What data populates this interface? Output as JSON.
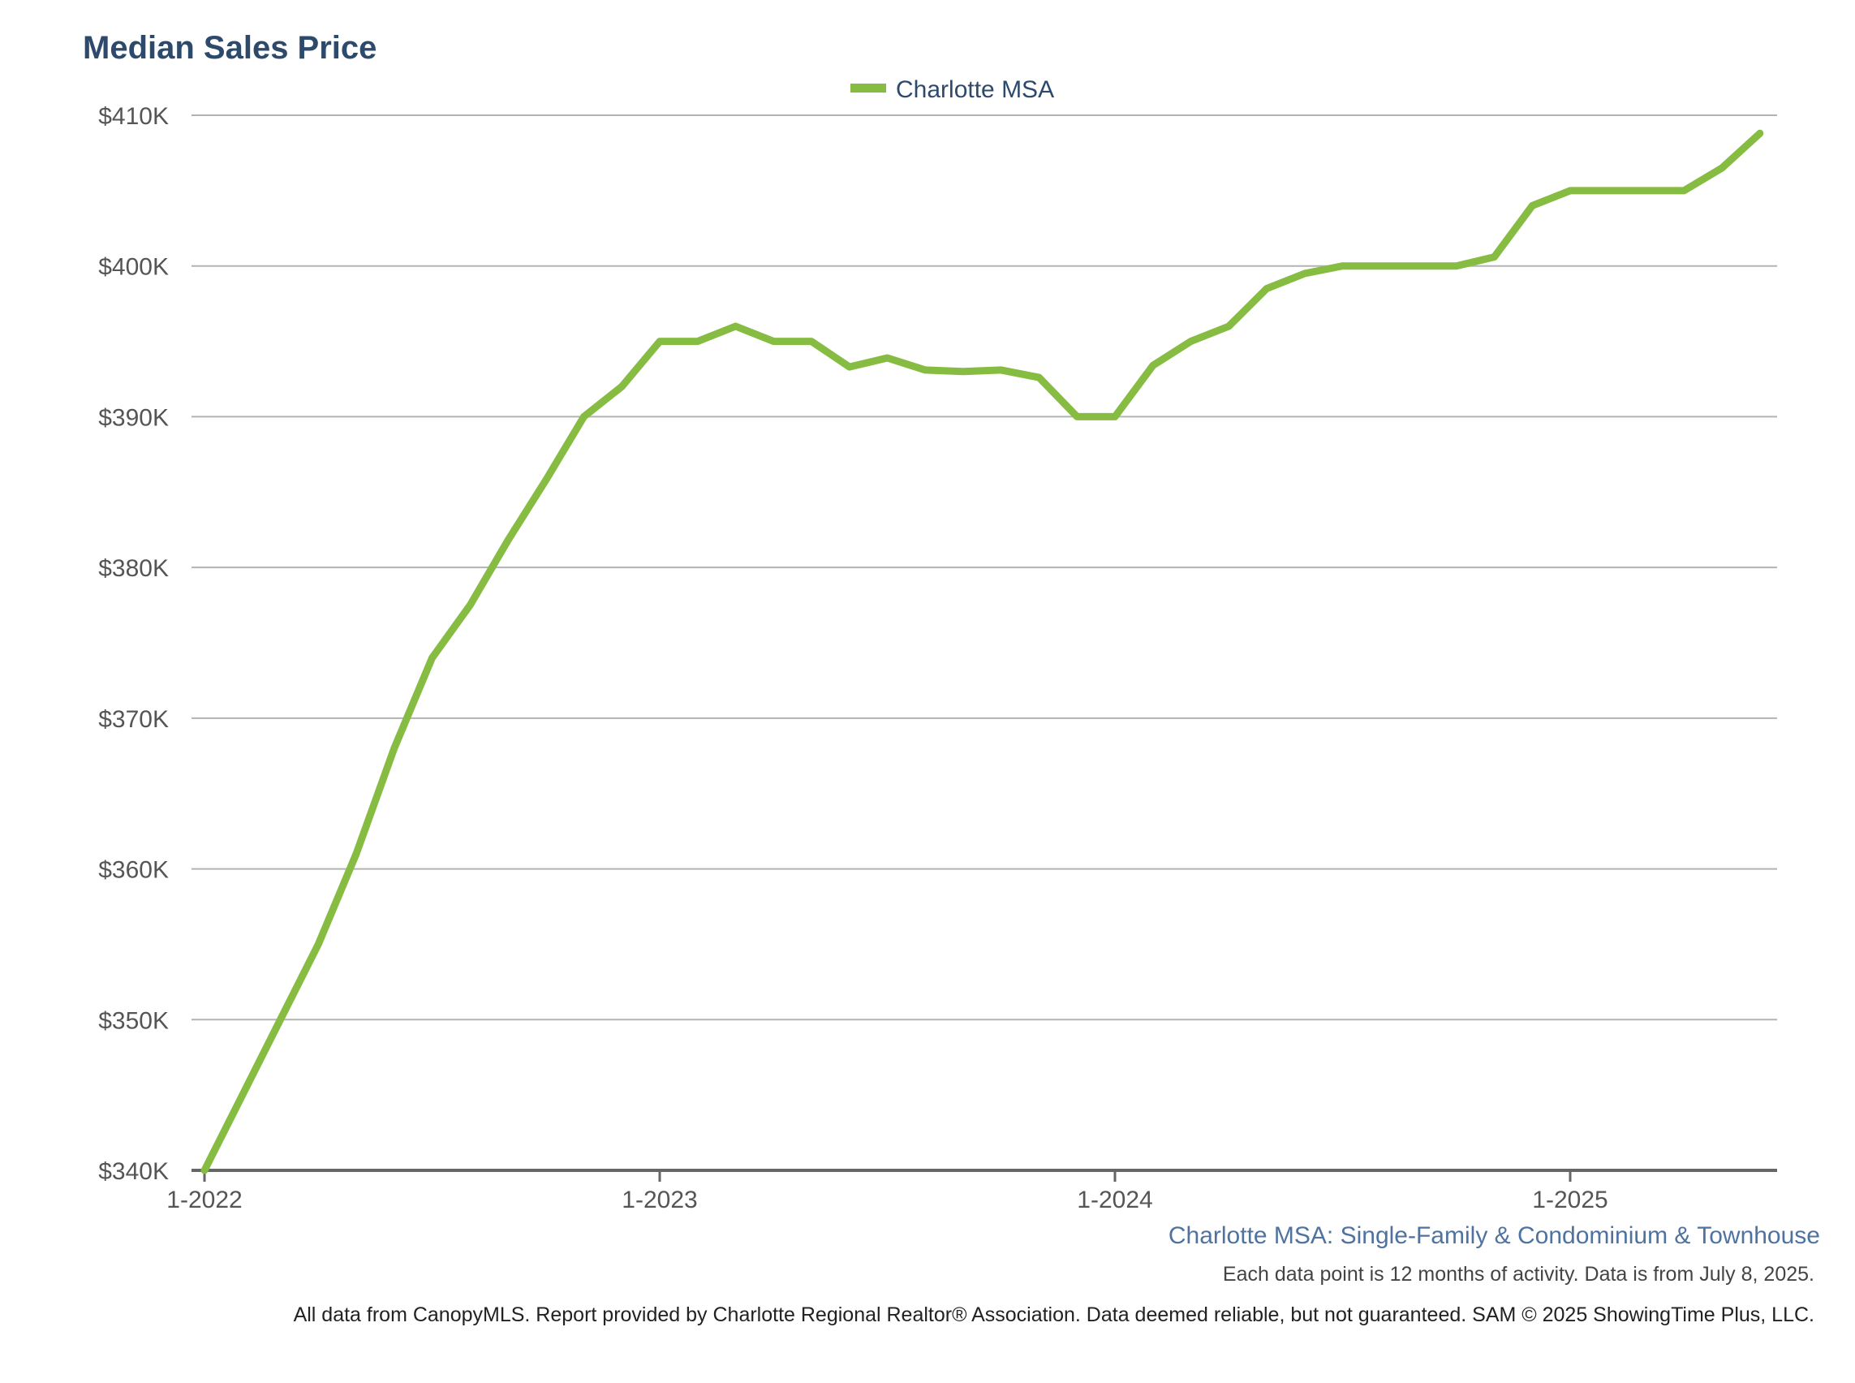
{
  "chart_data": {
    "type": "line",
    "title": "Median Sales Price",
    "subtitle": "Charlotte MSA: Single-Family & Condominium & Townhouse",
    "note": "Each data point is 12 months of activity. Data is from July 8, 2025.",
    "footer": "All data from CanopyMLS. Report provided by Charlotte Regional Realtor® Association. Data deemed reliable, but not guaranteed. SAM © 2025 ShowingTime Plus, LLC.",
    "legend_position": "top-center",
    "grid": true,
    "color": "#86bc42",
    "ylim": [
      340000,
      410000
    ],
    "y_ticks": [
      {
        "value": 340000,
        "label": "$340K"
      },
      {
        "value": 350000,
        "label": "$350K"
      },
      {
        "value": 360000,
        "label": "$360K"
      },
      {
        "value": 370000,
        "label": "$370K"
      },
      {
        "value": 380000,
        "label": "$380K"
      },
      {
        "value": 390000,
        "label": "$390K"
      },
      {
        "value": 400000,
        "label": "$400K"
      },
      {
        "value": 410000,
        "label": "$410K"
      }
    ],
    "x_ticks": [
      {
        "value": "2022-01",
        "label": "1-2022"
      },
      {
        "value": "2023-01",
        "label": "1-2023"
      },
      {
        "value": "2024-01",
        "label": "1-2024"
      },
      {
        "value": "2025-01",
        "label": "1-2025"
      }
    ],
    "series": [
      {
        "name": "Charlotte MSA",
        "x": [
          "2022-01",
          "2022-02",
          "2022-03",
          "2022-04",
          "2022-05",
          "2022-06",
          "2022-07",
          "2022-08",
          "2022-09",
          "2022-10",
          "2022-11",
          "2022-12",
          "2023-01",
          "2023-02",
          "2023-03",
          "2023-04",
          "2023-05",
          "2023-06",
          "2023-07",
          "2023-08",
          "2023-09",
          "2023-10",
          "2023-11",
          "2023-12",
          "2024-01",
          "2024-02",
          "2024-03",
          "2024-04",
          "2024-05",
          "2024-06",
          "2024-07",
          "2024-08",
          "2024-09",
          "2024-10",
          "2024-11",
          "2024-12",
          "2025-01",
          "2025-02",
          "2025-03",
          "2025-04",
          "2025-05",
          "2025-06"
        ],
        "values": [
          340000,
          345000,
          350000,
          355000,
          361000,
          368000,
          374000,
          377500,
          381800,
          385800,
          390000,
          392000,
          395000,
          395000,
          396000,
          395000,
          395000,
          393300,
          393900,
          393100,
          393000,
          393100,
          392600,
          390000,
          390000,
          393400,
          395000,
          396000,
          398500,
          399500,
          400000,
          400000,
          400000,
          400000,
          400600,
          404000,
          405000,
          405000,
          405000,
          405000,
          406500,
          408800
        ]
      }
    ]
  }
}
